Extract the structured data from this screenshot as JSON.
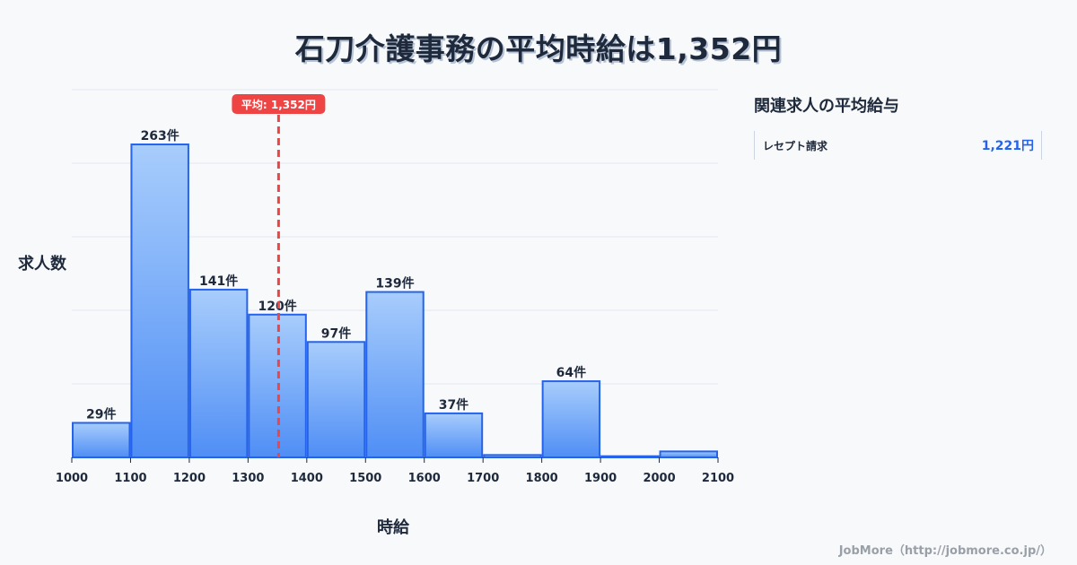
{
  "title": "石刀介護事務の平均時給は1,352円",
  "chart_data": {
    "type": "bar",
    "title": "石刀介護事務の平均時給は1,352円",
    "xlabel": "時給",
    "ylabel": "求人数",
    "bins": [
      1000,
      1100,
      1200,
      1300,
      1400,
      1500,
      1600,
      1700,
      1800,
      1900,
      2000,
      2100
    ],
    "categories": [
      "1000-1100",
      "1100-1200",
      "1200-1300",
      "1300-1400",
      "1400-1500",
      "1500-1600",
      "1600-1700",
      "1700-1800",
      "1800-1900",
      "1900-2000",
      "2000-2100"
    ],
    "values": [
      29,
      263,
      141,
      120,
      97,
      139,
      37,
      2,
      64,
      1,
      5
    ],
    "value_labels": [
      "29件",
      "263件",
      "141件",
      "120件",
      "97件",
      "139件",
      "37件",
      "",
      "64件",
      "",
      ""
    ],
    "x_tick_labels": [
      "1000",
      "1100",
      "1200",
      "1300",
      "1400",
      "1500",
      "1600",
      "1700",
      "1800",
      "1900",
      "2000",
      "2100"
    ],
    "ylim": [
      0,
      309
    ],
    "grid": true,
    "mean_line": {
      "value": 1352,
      "label": "平均: 1,352円",
      "color": "#ef4444"
    },
    "bar_color": "#60a5fa",
    "bar_edge_color": "#2563eb"
  },
  "sidebar": {
    "title": "関連求人の平均給与",
    "items": [
      {
        "name": "レセプト請求",
        "value": "1,221円"
      }
    ]
  },
  "footer": "JobMore（http://jobmore.co.jp/）"
}
